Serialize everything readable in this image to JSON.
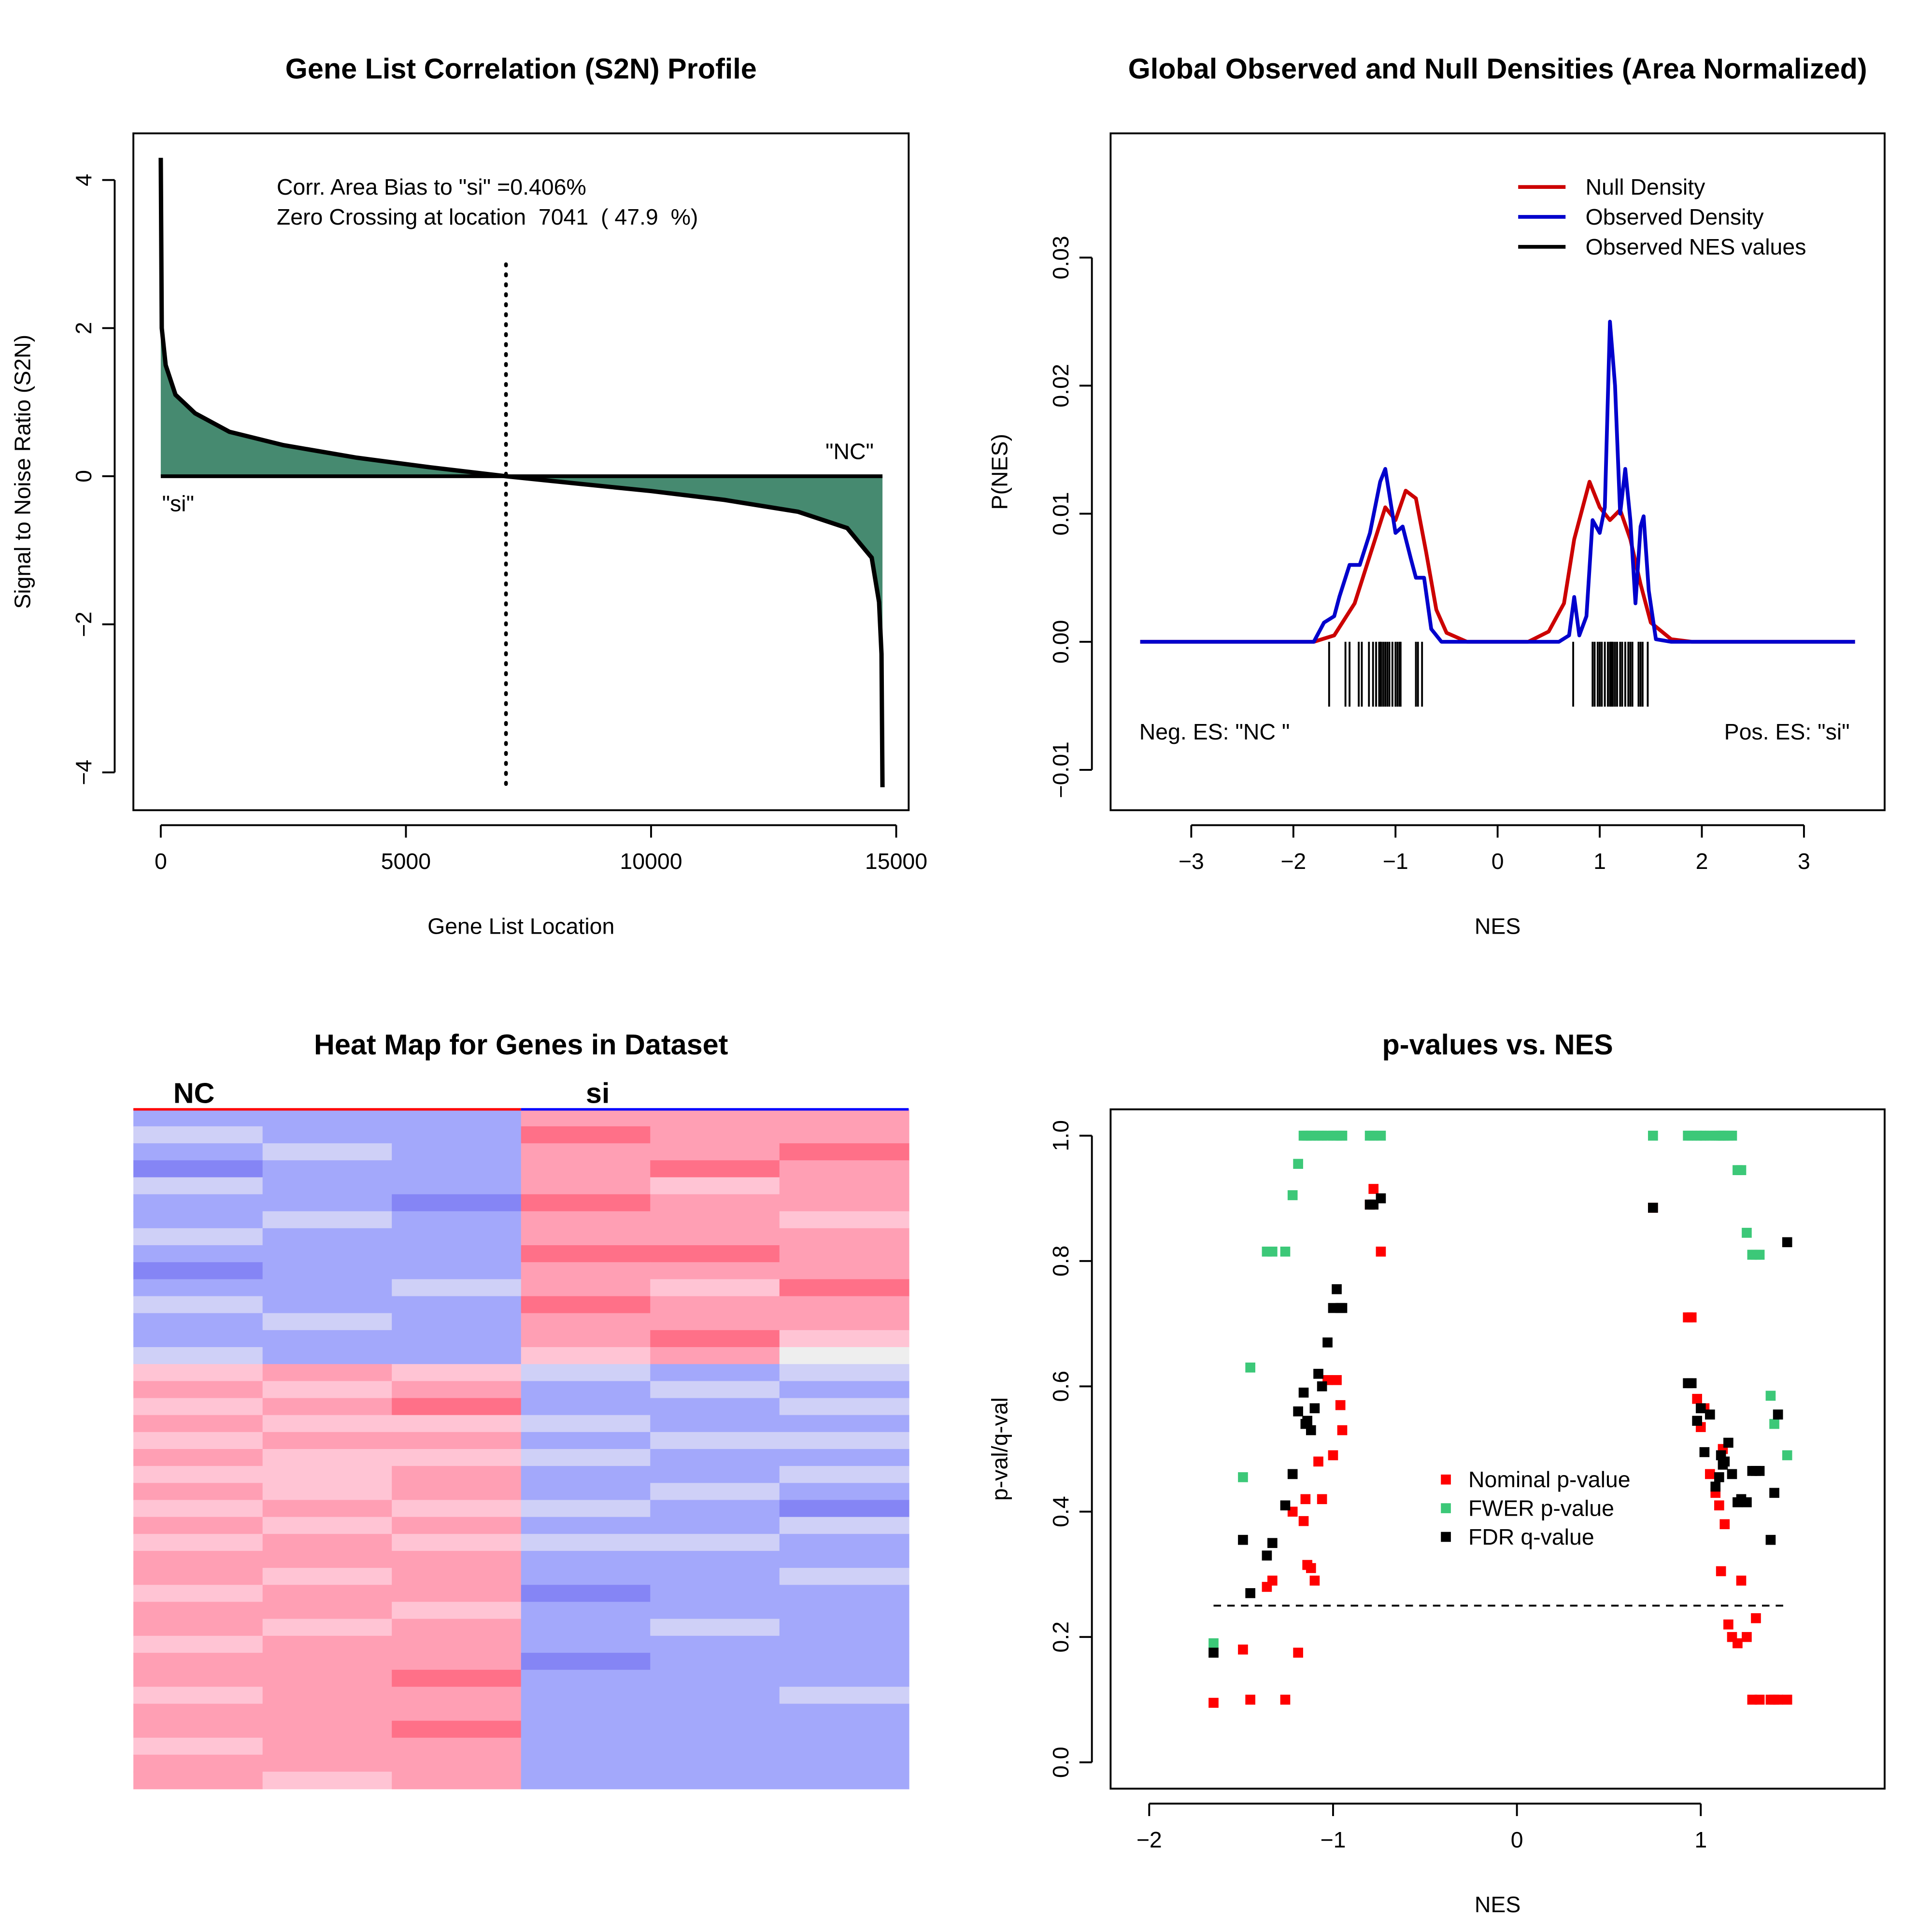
{
  "chart_data": [
    {
      "type": "area",
      "title": "Gene List Correlation (S2N) Profile",
      "x_label": "Gene List Location",
      "y_label": "Signal to Noise Ratio (S2N)",
      "x": [
        0,
        20,
        100,
        300,
        700,
        1400,
        2500,
        4000,
        5500,
        7041,
        8500,
        10000,
        11500,
        13000,
        14000,
        14500,
        14650,
        14700,
        14720
      ],
      "values": [
        4.3,
        2.0,
        1.5,
        1.1,
        0.85,
        0.6,
        0.42,
        0.25,
        0.12,
        0,
        -0.1,
        -0.2,
        -0.32,
        -0.48,
        -0.7,
        -1.1,
        -1.7,
        -2.4,
        -4.2
      ],
      "color": "#468a70",
      "line_color": "#000000",
      "xlim": [
        -559,
        15254
      ],
      "ylim": [
        -4.51,
        4.63
      ],
      "xticks": [
        0,
        5000,
        10000,
        15000
      ],
      "yticks": [
        {
          "value": -4,
          "label": "−4"
        },
        {
          "value": -2,
          "label": "−2"
        },
        0,
        2,
        4
      ],
      "annotations": [
        "Corr. Area Bias to \"si\" =0.406%",
        "Zero Crossing at location  7041  ( 47.9  %)"
      ],
      "zero_crossing": 7041,
      "left_label": "\"si\"",
      "right_label": "\"NC\""
    },
    {
      "type": "line",
      "title": "Global Observed and Null Densities (Area Normalized)",
      "x_label": "NES",
      "y_label": "P(NES)",
      "series": [
        {
          "name": "Null Density",
          "color": "#cc0000",
          "x": [
            -3.5,
            -1.8,
            -1.6,
            -1.4,
            -1.2,
            -1.1,
            -1.0,
            -0.9,
            -0.8,
            -0.7,
            -0.6,
            -0.5,
            -0.3,
            0.3,
            0.5,
            0.65,
            0.75,
            0.9,
            1.0,
            1.1,
            1.2,
            1.3,
            1.4,
            1.5,
            1.7,
            1.9,
            3.5
          ],
          "values": [
            0,
            0,
            0.0005,
            0.003,
            0.008,
            0.0105,
            0.0095,
            0.0118,
            0.0112,
            0.007,
            0.0025,
            0.0007,
            0,
            0,
            0.0008,
            0.003,
            0.008,
            0.0125,
            0.0105,
            0.0095,
            0.0103,
            0.008,
            0.0045,
            0.0015,
            0.0002,
            0,
            0
          ]
        },
        {
          "name": "Observed Density",
          "color": "#0000cc",
          "x": [
            -3.5,
            -1.8,
            -1.7,
            -1.6,
            -1.55,
            -1.45,
            -1.35,
            -1.25,
            -1.15,
            -1.1,
            -1.05,
            -1.0,
            -0.93,
            -0.85,
            -0.8,
            -0.72,
            -0.65,
            -0.55,
            0.6,
            0.7,
            0.75,
            0.8,
            0.87,
            0.93,
            1.0,
            1.05,
            1.1,
            1.15,
            1.2,
            1.25,
            1.3,
            1.35,
            1.4,
            1.43,
            1.48,
            1.55,
            1.7,
            3.5
          ],
          "values": [
            0,
            0,
            0.0015,
            0.002,
            0.0035,
            0.006,
            0.006,
            0.0085,
            0.0125,
            0.0135,
            0.011,
            0.0085,
            0.009,
            0.0065,
            0.005,
            0.005,
            0.001,
            0,
            0,
            0.0005,
            0.0035,
            0.0005,
            0.002,
            0.0095,
            0.0085,
            0.0105,
            0.025,
            0.02,
            0.01,
            0.0135,
            0.0095,
            0.003,
            0.009,
            0.0098,
            0.004,
            0.0002,
            0,
            0
          ]
        },
        {
          "name": "Observed NES values",
          "color": "#000000",
          "style": "rug",
          "x": [
            -1.65,
            -1.49,
            -1.45,
            -1.36,
            -1.33,
            -1.26,
            -1.22,
            -1.19,
            -1.16,
            -1.15,
            -1.14,
            -1.12,
            -1.1,
            -1.08,
            -1.06,
            -1.03,
            -1.0,
            -0.98,
            -0.96,
            -0.95,
            -0.8,
            -0.78,
            -0.74,
            0.74,
            0.93,
            0.95,
            0.98,
            1.0,
            1.02,
            1.05,
            1.08,
            1.1,
            1.11,
            1.12,
            1.13,
            1.15,
            1.17,
            1.2,
            1.22,
            1.25,
            1.28,
            1.3,
            1.32,
            1.38,
            1.4,
            1.42,
            1.47
          ]
        }
      ],
      "xlim": [
        -3.79,
        3.79
      ],
      "ylim": [
        -0.01315,
        0.0397
      ],
      "xticks": [
        {
          "value": -3,
          "label": "−3"
        },
        {
          "value": -2,
          "label": "−2"
        },
        {
          "value": -1,
          "label": "−1"
        },
        0,
        1,
        2,
        3
      ],
      "yticks": [
        {
          "value": -0.01,
          "label": "−0.01"
        },
        {
          "value": 0,
          "label": "0.00"
        },
        0.01,
        0.02,
        0.03
      ],
      "legend": "topright",
      "annotations": [
        "Neg. ES: \"NC \"",
        "Pos. ES: \"si\""
      ]
    },
    {
      "type": "heatmap",
      "title": "Heat Map for Genes in Dataset",
      "groups": [
        {
          "name": "NC",
          "color": "#ff0000",
          "columns": 3
        },
        {
          "name": "si",
          "color": "#0000ff",
          "columns": 3
        }
      ],
      "zlim": [
        -3,
        3
      ],
      "palette": [
        "#8585f5",
        "#a3a8fb",
        "#cfd0f7",
        "#eeeeee",
        "#ffc4d4",
        "#ff9fb4",
        "#ff7088"
      ],
      "values": [
        [
          -2,
          -2,
          -2,
          2,
          2,
          2
        ],
        [
          -1,
          -2,
          -2,
          3,
          2,
          2
        ],
        [
          -2,
          -1,
          -2,
          2,
          2,
          3
        ],
        [
          -3,
          -2,
          -2,
          2,
          3,
          2
        ],
        [
          -1,
          -2,
          -2,
          2,
          1,
          2
        ],
        [
          -2,
          -2,
          -3,
          3,
          2,
          2
        ],
        [
          -2,
          -1,
          -2,
          2,
          2,
          1
        ],
        [
          -1,
          -2,
          -2,
          2,
          2,
          2
        ],
        [
          -2,
          -2,
          -2,
          3,
          3,
          2
        ],
        [
          -3,
          -2,
          -2,
          2,
          2,
          2
        ],
        [
          -2,
          -2,
          -1,
          2,
          1,
          3
        ],
        [
          -1,
          -2,
          -2,
          3,
          2,
          2
        ],
        [
          -2,
          -1,
          -2,
          2,
          2,
          2
        ],
        [
          -2,
          -2,
          -2,
          2,
          3,
          1
        ],
        [
          -1,
          -2,
          -2,
          1,
          2,
          0
        ],
        [
          1,
          2,
          1,
          -1,
          -2,
          -1
        ],
        [
          2,
          1,
          2,
          -2,
          -1,
          -2
        ],
        [
          1,
          2,
          3,
          -2,
          -2,
          -1
        ],
        [
          2,
          1,
          1,
          -1,
          -2,
          -2
        ],
        [
          1,
          2,
          2,
          -2,
          -1,
          -1
        ],
        [
          2,
          1,
          1,
          -1,
          -2,
          -2
        ],
        [
          1,
          1,
          2,
          -2,
          -2,
          -1
        ],
        [
          2,
          1,
          2,
          -2,
          -1,
          -2
        ],
        [
          1,
          2,
          1,
          -1,
          -2,
          -3
        ],
        [
          2,
          1,
          2,
          -2,
          -2,
          -1
        ],
        [
          1,
          2,
          1,
          -1,
          -1,
          -2
        ],
        [
          2,
          2,
          2,
          -2,
          -2,
          -2
        ],
        [
          2,
          1,
          2,
          -2,
          -2,
          -1
        ],
        [
          1,
          2,
          2,
          -3,
          -2,
          -2
        ],
        [
          2,
          2,
          1,
          -2,
          -2,
          -2
        ],
        [
          2,
          1,
          2,
          -2,
          -1,
          -2
        ],
        [
          1,
          2,
          2,
          -2,
          -2,
          -2
        ],
        [
          2,
          2,
          2,
          -3,
          -2,
          -2
        ],
        [
          2,
          2,
          3,
          -2,
          -2,
          -2
        ],
        [
          1,
          2,
          2,
          -2,
          -2,
          -1
        ],
        [
          2,
          2,
          2,
          -2,
          -2,
          -2
        ],
        [
          2,
          2,
          3,
          -2,
          -2,
          -2
        ],
        [
          1,
          2,
          2,
          -2,
          -2,
          -2
        ],
        [
          2,
          2,
          2,
          -2,
          -2,
          -2
        ],
        [
          2,
          1,
          2,
          -2,
          -2,
          -2
        ]
      ]
    },
    {
      "type": "scatter",
      "title": "p-values vs. NES",
      "x_label": "NES",
      "y_label": "p-val/q-val",
      "x": [
        -1.65,
        -1.49,
        -1.45,
        -1.36,
        -1.33,
        -1.26,
        -1.22,
        -1.19,
        -1.16,
        -1.15,
        -1.14,
        -1.12,
        -1.1,
        -1.08,
        -1.06,
        -1.03,
        -1.0,
        -0.98,
        -0.96,
        -0.95,
        -0.8,
        -0.78,
        -0.74,
        0.74,
        0.93,
        0.95,
        0.98,
        1.0,
        1.02,
        1.05,
        1.08,
        1.1,
        1.11,
        1.12,
        1.13,
        1.15,
        1.17,
        1.2,
        1.22,
        1.25,
        1.28,
        1.3,
        1.32,
        1.38,
        1.4,
        1.42,
        1.47
      ],
      "series": [
        {
          "name": "Nominal p-value",
          "color": "#ff0000",
          "values": [
            0.095,
            0.18,
            0.1,
            0.28,
            0.29,
            0.1,
            0.4,
            0.175,
            0.385,
            0.42,
            0.315,
            0.31,
            0.29,
            0.48,
            0.42,
            0.61,
            0.49,
            0.61,
            0.57,
            0.53,
            0.89,
            0.915,
            0.815,
            0.885,
            0.71,
            0.71,
            0.58,
            0.535,
            0.565,
            0.46,
            0.43,
            0.41,
            0.305,
            0.5,
            0.38,
            0.22,
            0.2,
            0.19,
            0.29,
            0.2,
            0.1,
            0.23,
            0.1,
            0.1,
            0.1,
            0.1,
            0.1
          ]
        },
        {
          "name": "FWER p-value",
          "color": "#3cc878",
          "values": [
            0.19,
            0.455,
            0.63,
            0.815,
            0.815,
            0.815,
            0.905,
            0.955,
            1,
            1,
            1,
            1,
            1,
            1,
            1,
            1,
            1,
            1,
            1,
            1,
            1,
            1,
            1,
            1,
            1,
            1,
            1,
            1,
            1,
            1,
            1,
            1,
            1,
            1,
            1,
            1,
            1,
            0.945,
            0.945,
            0.845,
            0.81,
            0.81,
            0.81,
            0.585,
            0.54,
            0.555,
            0.49
          ]
        },
        {
          "name": "FDR q-value",
          "color": "#000000",
          "values": [
            0.175,
            0.355,
            0.27,
            0.33,
            0.35,
            0.41,
            0.46,
            0.56,
            0.59,
            0.54,
            0.545,
            0.53,
            0.565,
            0.62,
            0.6,
            0.67,
            0.725,
            0.755,
            0.725,
            0.725,
            0.89,
            0.89,
            0.9,
            0.885,
            0.605,
            0.605,
            0.545,
            0.565,
            0.495,
            0.555,
            0.44,
            0.455,
            0.49,
            0.475,
            0.48,
            0.51,
            0.46,
            0.415,
            0.42,
            0.415,
            0.465,
            0.465,
            0.465,
            0.355,
            0.43,
            0.555,
            0.83
          ]
        }
      ],
      "xlim": [
        -2.21,
        2.0
      ],
      "ylim": [
        -0.042,
        1.042
      ],
      "xticks": [
        {
          "value": -2,
          "label": "−2"
        },
        {
          "value": -1,
          "label": "−1"
        },
        0,
        1
      ],
      "yticks": [
        {
          "value": 0,
          "label": "0.0"
        },
        0.2,
        0.4,
        0.6,
        0.8,
        {
          "value": 1,
          "label": "1.0"
        }
      ],
      "threshold": 0.25,
      "legend": "right"
    }
  ]
}
